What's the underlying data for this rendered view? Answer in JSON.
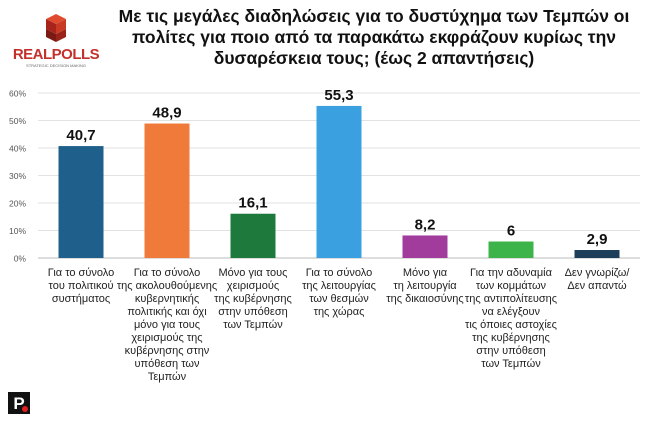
{
  "brand": {
    "logo_text": "REALPOLLS",
    "logo_tagline": "STRATEGIC DECISION MAKING",
    "footer_logo": "P"
  },
  "chart_data": {
    "type": "bar",
    "title": "Με τις μεγάλες διαδηλώσεις για το δυστύχημα των Τεμπών οι πολίτες για ποιο από τα παρακάτω εκφράζουν κυρίως την δυσαρέσκεια τους; (έως 2 απαντήσεις)",
    "categories": [
      "Για το σύνολο του πολιτικού συστήματος",
      "Για το σύνολο της ακολουθούμενης κυβερνητικής πολιτικής και όχι μόνο για τους χειρισμούς της κυβέρνησης στην υπόθεση των Τεμπών",
      "Μόνο για τους χειρισμούς της κυβέρνησης στην υπόθεση των Τεμπών",
      "Για το σύνολο της λειτουργίας των θεσμών της χώρας",
      "Μόνο για τη λειτουργία της δικαιοσύνης",
      "Για την αδυναμία των κομμάτων της αντιπολίτευσης να ελέγξουν τις όποιες αστοχίες της κυβέρνησης στην υπόθεση των Τεμπών",
      "Δεν γνωρίζω/ Δεν απαντώ"
    ],
    "category_lines": [
      [
        "Για το σύνολο",
        "του πολιτικού",
        "συστήματος"
      ],
      [
        "Για το σύνολο",
        "της ακολουθούμενης",
        "κυβερνητικής",
        "πολιτικής και όχι",
        "μόνο για τους",
        "χειρισμούς της",
        "κυβέρνησης στην",
        "υπόθεση των Τεμπών"
      ],
      [
        "Μόνο για τους",
        "χειρισμούς",
        "της κυβέρνησης",
        "στην υπόθεση",
        "των Τεμπών"
      ],
      [
        "Για το σύνολο",
        "της λειτουργίας",
        "των θεσμών",
        "της χώρας"
      ],
      [
        "Μόνο για",
        "τη λειτουργία",
        "της δικαιοσύνης"
      ],
      [
        "Για την αδυναμία",
        "των κομμάτων",
        "της αντιπολίτευσης",
        "να ελέγξουν",
        "τις όποιες αστοχίες",
        "της κυβέρνησης",
        "στην υπόθεση",
        "των Τεμπών"
      ],
      [
        "Δεν γνωρίζω/",
        "Δεν απαντώ"
      ]
    ],
    "values": [
      40.7,
      48.9,
      16.1,
      55.3,
      8.2,
      6,
      2.9
    ],
    "value_labels": [
      "40,7",
      "48,9",
      "16,1",
      "55,3",
      "8,2",
      "6",
      "2,9"
    ],
    "colors": [
      "#1f5f8b",
      "#f07a3a",
      "#1e7a3c",
      "#3aa0e0",
      "#a23c9c",
      "#3cb44a",
      "#1c3e5a"
    ],
    "ylim": [
      0,
      60
    ],
    "yticks": [
      0,
      10,
      20,
      30,
      40,
      50,
      60
    ],
    "ytick_labels": [
      "0%",
      "10%",
      "20%",
      "30%",
      "40%",
      "50%",
      "60%"
    ],
    "grid": true,
    "legend": "none",
    "xlabel": "",
    "ylabel": ""
  }
}
